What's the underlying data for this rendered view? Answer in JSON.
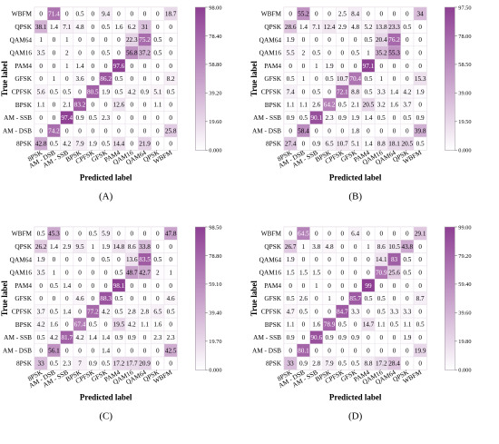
{
  "colors": {
    "low": "#ffffff",
    "high": "#8e3f93",
    "grid": "#e6dde8",
    "text": "#000000"
  },
  "chart_data": [
    {
      "type": "heatmap",
      "panel_label": "(A)",
      "xlabel": "Predicted label",
      "ylabel": "True label",
      "rows": [
        "WBFM",
        "QPSK",
        "QAM64",
        "QAM16",
        "PAM4",
        "GFSK",
        "CPFSK",
        "BPSK",
        "AM - SSB",
        "AM - DSB",
        "8PSK"
      ],
      "cols": [
        "8PSK",
        "AM - DSB",
        "AM - SSB",
        "BPSK",
        "CPFSK",
        "GFSK",
        "PAM4",
        "QAM16",
        "QAM64",
        "QPSK",
        "WBFM"
      ],
      "colorbar": {
        "min": 0,
        "max": 98,
        "ticks": [
          "98.00",
          "78.40",
          "58.80",
          "39.20",
          "19.60",
          "0.000"
        ]
      },
      "values": [
        [
          0,
          71.4,
          0,
          0.5,
          0,
          9.4,
          0,
          0,
          0,
          0,
          18.7
        ],
        [
          38.1,
          1.4,
          7.1,
          4.8,
          0,
          0.5,
          1.6,
          6.2,
          31,
          0,
          0
        ],
        [
          1,
          0,
          1,
          0,
          0,
          0,
          0,
          22.3,
          75.2,
          0.5,
          0
        ],
        [
          3.5,
          0,
          2,
          0,
          0,
          0.5,
          0,
          56.8,
          37.2,
          0.5,
          0
        ],
        [
          0,
          0,
          1,
          1.4,
          0,
          0,
          97.6,
          0,
          0,
          0,
          0
        ],
        [
          0,
          1,
          0,
          3.6,
          0,
          86.2,
          0.5,
          0,
          0,
          0,
          8.2
        ],
        [
          5.6,
          0.5,
          0.5,
          0,
          80.5,
          1.9,
          0.5,
          4.2,
          0.9,
          5.1,
          0.5
        ],
        [
          1.1,
          0,
          2.1,
          83.2,
          0,
          0,
          12.6,
          0,
          0,
          1.1,
          0
        ],
        [
          0,
          0,
          97.4,
          0.9,
          0.5,
          2.3,
          0,
          0,
          0,
          0,
          0
        ],
        [
          0,
          74.2,
          0,
          0,
          0,
          0,
          0,
          0,
          0,
          0,
          25.8
        ],
        [
          42.8,
          0.5,
          4.2,
          7.9,
          1.9,
          0.5,
          14.4,
          0,
          21.9,
          0,
          0
        ]
      ]
    },
    {
      "type": "heatmap",
      "panel_label": "(B)",
      "xlabel": "Predicted label",
      "ylabel": "True label",
      "rows": [
        "WBFM",
        "QPSK",
        "QAM64",
        "QAM16",
        "PAM4",
        "GFSK",
        "CPFSK",
        "BPSK",
        "AM - SSB",
        "AM - DSB",
        "8PSK"
      ],
      "cols": [
        "8PSK",
        "AM - DSB",
        "AM - SSB",
        "BPSK",
        "CPFSK",
        "GFSK",
        "PAM4",
        "QAM16",
        "QAM64",
        "QPSK",
        "WBFM"
      ],
      "colorbar": {
        "min": 0,
        "max": 97.5,
        "ticks": [
          "97.50",
          "78.00",
          "58.50",
          "39.00",
          "19.50",
          "0.000"
        ]
      },
      "values": [
        [
          0,
          55.2,
          0,
          0,
          2.5,
          8.4,
          0,
          0,
          0,
          0,
          34
        ],
        [
          28.6,
          1.4,
          7.1,
          12.4,
          2.9,
          4.8,
          5.2,
          13.8,
          23.3,
          0.5,
          0
        ],
        [
          1.9,
          0,
          0,
          0,
          0,
          0,
          0.5,
          20.4,
          76.2,
          0,
          0
        ],
        [
          5.5,
          2,
          0.5,
          0,
          0,
          0.5,
          1,
          35.2,
          55.3,
          0,
          0
        ],
        [
          0,
          0,
          1,
          1.9,
          0,
          0,
          97.1,
          0,
          0,
          0,
          0
        ],
        [
          0.5,
          1,
          0,
          0.5,
          10.7,
          70.4,
          0.5,
          1,
          0,
          0,
          15.3
        ],
        [
          7.4,
          0,
          0.5,
          0,
          72.1,
          8.8,
          0.5,
          3.3,
          1.4,
          4.2,
          1.9
        ],
        [
          1.1,
          1.1,
          2.6,
          64.2,
          0.5,
          2.1,
          20.5,
          3.2,
          1.6,
          3.7,
          0
        ],
        [
          0.9,
          0.5,
          90.1,
          2.3,
          0.9,
          1.9,
          1.4,
          0.5,
          0,
          0.5,
          0.9
        ],
        [
          0,
          58.4,
          0,
          0,
          0,
          1.8,
          0,
          0,
          0,
          0,
          39.8
        ],
        [
          27.4,
          0,
          0.9,
          6.5,
          10.7,
          5.1,
          1.4,
          8.8,
          18.1,
          20.5,
          0.5
        ]
      ]
    },
    {
      "type": "heatmap",
      "panel_label": "(C)",
      "xlabel": "Predicted label",
      "ylabel": "True label",
      "rows": [
        "WBFM",
        "QPSK",
        "QAM64",
        "QAM16",
        "PAM4",
        "GFSK",
        "CPFSK",
        "BPSK",
        "AM - SSB",
        "AM - DSB",
        "8PSK"
      ],
      "cols": [
        "8PSK",
        "AM - DSB",
        "AM - SSB",
        "BPSK",
        "CPFSK",
        "GFSK",
        "PAM4",
        "QAM16",
        "QAM64",
        "QPSK",
        "WBFM"
      ],
      "colorbar": {
        "min": 0,
        "max": 98.5,
        "ticks": [
          "98.50",
          "78.80",
          "59.10",
          "39.40",
          "19.70",
          "0.000"
        ]
      },
      "values": [
        [
          0.5,
          45.3,
          0,
          0,
          0.5,
          5.9,
          0,
          0,
          0,
          0,
          47.8
        ],
        [
          26.2,
          1.4,
          2.9,
          9.5,
          1,
          1.9,
          14.8,
          8.6,
          33.8,
          0,
          0
        ],
        [
          1.9,
          0,
          0,
          0,
          0,
          0.5,
          0,
          13.6,
          83.5,
          0.5,
          0
        ],
        [
          3.5,
          1,
          0,
          0,
          0,
          0,
          0.5,
          48.7,
          42.7,
          2,
          1
        ],
        [
          0,
          0.5,
          1.4,
          0,
          0,
          0,
          98.1,
          0,
          0,
          0,
          0
        ],
        [
          0,
          0,
          0,
          4.6,
          0,
          88.3,
          0.5,
          0,
          0,
          0,
          4.6
        ],
        [
          3.7,
          0.5,
          1.4,
          0,
          77.2,
          4.2,
          0.5,
          2.8,
          2.8,
          6.5,
          0.5
        ],
        [
          4.2,
          1.6,
          0,
          67.4,
          0.5,
          0,
          19.5,
          4.2,
          1.1,
          1.6,
          0
        ],
        [
          0.5,
          4.2,
          81.7,
          4.2,
          1.4,
          1.4,
          0.9,
          0.9,
          0,
          2.3,
          2.3
        ],
        [
          0,
          56.1,
          0,
          0,
          0,
          1.4,
          0,
          0,
          0,
          0,
          42.5
        ],
        [
          33,
          0.5,
          2.3,
          7,
          0.9,
          0.5,
          17.2,
          17.7,
          20.9,
          0,
          0
        ]
      ]
    },
    {
      "type": "heatmap",
      "panel_label": "(D)",
      "xlabel": "Predicted label",
      "ylabel": "True label",
      "rows": [
        "WBFM",
        "QPSK",
        "QAM64",
        "QAM16",
        "PAM4",
        "GFSK",
        "CPFSK",
        "BPSK",
        "AM - SSB",
        "AM - DSB",
        "8PSK"
      ],
      "cols": [
        "8PSK",
        "AM - DSB",
        "AM - SSB",
        "BPSK",
        "CPFSK",
        "GFSK",
        "PAM4",
        "QAM16",
        "QAM64",
        "QPSK",
        "WBFM"
      ],
      "colorbar": {
        "min": 0,
        "max": 99,
        "ticks": [
          "99.00",
          "79.20",
          "59.40",
          "39.60",
          "19.80",
          "0.000"
        ]
      },
      "values": [
        [
          0,
          64.5,
          0,
          0,
          0,
          6.4,
          0,
          0,
          0,
          0,
          29.1
        ],
        [
          26.7,
          1,
          3.8,
          4.8,
          0,
          0,
          1,
          8.6,
          10.5,
          43.8,
          0
        ],
        [
          1.9,
          0,
          0,
          0,
          0,
          0,
          0,
          14.1,
          83,
          0.5,
          0
        ],
        [
          1.5,
          1.5,
          1.5,
          0,
          0,
          0,
          0,
          70.9,
          25.6,
          0.5,
          0
        ],
        [
          0,
          0,
          1,
          0,
          0,
          0,
          99,
          0,
          0,
          0,
          0
        ],
        [
          0.5,
          2.6,
          0,
          1,
          0,
          85.7,
          0.5,
          0.5,
          0,
          0,
          8.7
        ],
        [
          4.7,
          0.5,
          0,
          0,
          84.7,
          3.3,
          0,
          0.5,
          3.3,
          3.3,
          0
        ],
        [
          1.1,
          0,
          1.6,
          78.9,
          0.5,
          0,
          14.7,
          1.1,
          0.5,
          1.1,
          0.5
        ],
        [
          0.9,
          0,
          90.6,
          0.9,
          0.9,
          0.9,
          0,
          0,
          0,
          1.9,
          0
        ],
        [
          0,
          80.1,
          0,
          0,
          0,
          0,
          0,
          0,
          0,
          0,
          19.9
        ],
        [
          33,
          0.9,
          2.8,
          7.9,
          0.5,
          0.5,
          8.8,
          17.2,
          28.4,
          0,
          0
        ]
      ]
    }
  ]
}
